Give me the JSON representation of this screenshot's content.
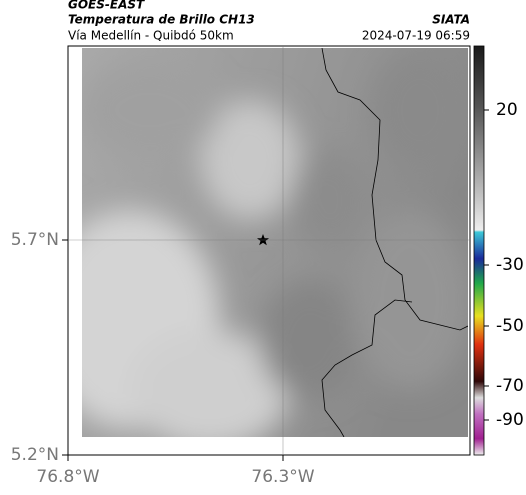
{
  "header": {
    "satellite": "GOES-EAST",
    "product": "Temperatura de Brillo CH13",
    "region": "Vía Medellín - Quibdó 50km",
    "source": "SIATA",
    "datetime": "2024-07-19 06:59"
  },
  "map": {
    "lat_ticks": [
      {
        "value": 5.7,
        "label": "5.7°N"
      },
      {
        "value": 5.2,
        "label": "5.2°N"
      }
    ],
    "lon_ticks": [
      {
        "value": -76.8,
        "label": "76.8°W"
      },
      {
        "value": -76.3,
        "label": "76.3°W"
      }
    ]
  },
  "colorbar": {
    "ticks": [
      20,
      -30,
      -50,
      -70,
      -90
    ]
  }
}
